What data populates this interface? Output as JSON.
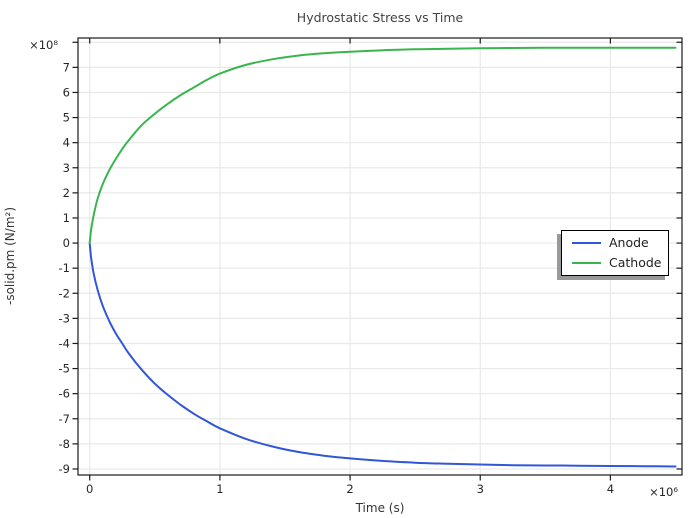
{
  "chart_data": {
    "type": "line",
    "title": "Hydrostatic Stress vs Time",
    "xlabel": "Time (s)",
    "ylabel": "-solid.pm (N/m²)",
    "x_scale_label": "×10⁶",
    "y_scale_label": "×10⁸",
    "x_values_scale": 1000000,
    "y_values_scale": 100000000,
    "xlim": [
      -0.09,
      4.55
    ],
    "ylim": [
      -9.24,
      8.17
    ],
    "x_ticks": [
      0,
      1,
      2,
      3,
      4
    ],
    "x_tick_labels": [
      "0",
      "1",
      "2",
      "3",
      "4"
    ],
    "y_ticks": [
      -9,
      -8,
      -7,
      -6,
      -5,
      -4,
      -3,
      -2,
      -1,
      0,
      1,
      2,
      3,
      4,
      5,
      6,
      7,
      8
    ],
    "y_tick_labels": [
      "-9",
      "-8",
      "-7",
      "-6",
      "-5",
      "-4",
      "-3",
      "-2",
      "-1",
      "0",
      "1",
      "2",
      "3",
      "4",
      "5",
      "6",
      "7",
      ""
    ],
    "grid": true,
    "legend_position": "right-middle",
    "series": [
      {
        "name": "Anode",
        "color": "#3157d9",
        "points": [
          [
            0,
            0
          ],
          [
            0.01,
            -0.55
          ],
          [
            0.03,
            -1.2
          ],
          [
            0.06,
            -1.85
          ],
          [
            0.1,
            -2.5
          ],
          [
            0.15,
            -3.1
          ],
          [
            0.2,
            -3.6
          ],
          [
            0.25,
            -4.0
          ],
          [
            0.3,
            -4.4
          ],
          [
            0.4,
            -5.05
          ],
          [
            0.5,
            -5.6
          ],
          [
            0.6,
            -6.05
          ],
          [
            0.7,
            -6.45
          ],
          [
            0.8,
            -6.8
          ],
          [
            0.9,
            -7.1
          ],
          [
            1.0,
            -7.38
          ],
          [
            1.2,
            -7.8
          ],
          [
            1.4,
            -8.1
          ],
          [
            1.6,
            -8.32
          ],
          [
            1.8,
            -8.47
          ],
          [
            2.0,
            -8.58
          ],
          [
            2.25,
            -8.68
          ],
          [
            2.5,
            -8.75
          ],
          [
            2.75,
            -8.79
          ],
          [
            3.0,
            -8.82
          ],
          [
            3.25,
            -8.85
          ],
          [
            3.5,
            -8.86
          ],
          [
            3.75,
            -8.87
          ],
          [
            4.0,
            -8.88
          ],
          [
            4.25,
            -8.89
          ],
          [
            4.5,
            -8.9
          ]
        ]
      },
      {
        "name": "Cathode",
        "color": "#3ab54d",
        "points": [
          [
            0,
            0
          ],
          [
            0.01,
            0.5
          ],
          [
            0.03,
            1.1
          ],
          [
            0.06,
            1.75
          ],
          [
            0.1,
            2.35
          ],
          [
            0.15,
            2.9
          ],
          [
            0.2,
            3.35
          ],
          [
            0.25,
            3.75
          ],
          [
            0.3,
            4.1
          ],
          [
            0.4,
            4.7
          ],
          [
            0.5,
            5.15
          ],
          [
            0.6,
            5.55
          ],
          [
            0.7,
            5.9
          ],
          [
            0.8,
            6.2
          ],
          [
            0.9,
            6.5
          ],
          [
            1.0,
            6.75
          ],
          [
            1.2,
            7.1
          ],
          [
            1.4,
            7.32
          ],
          [
            1.6,
            7.47
          ],
          [
            1.8,
            7.56
          ],
          [
            2.0,
            7.62
          ],
          [
            2.25,
            7.68
          ],
          [
            2.5,
            7.72
          ],
          [
            2.75,
            7.74
          ],
          [
            3.0,
            7.76
          ],
          [
            3.25,
            7.77
          ],
          [
            3.5,
            7.78
          ],
          [
            3.75,
            7.78
          ],
          [
            4.0,
            7.78
          ],
          [
            4.25,
            7.78
          ],
          [
            4.5,
            7.78
          ]
        ]
      }
    ]
  },
  "legend": {
    "entries": [
      {
        "label": "Anode"
      },
      {
        "label": "Cathode"
      }
    ]
  },
  "colors": {
    "background": "#ffffff",
    "grid": "#e9e9e9",
    "axis": "#1a1a1a",
    "tick_label": "#262626",
    "title": "#424242",
    "anode": "#3157d9",
    "cathode": "#3ab54d",
    "legend_shadow": "#999999"
  }
}
